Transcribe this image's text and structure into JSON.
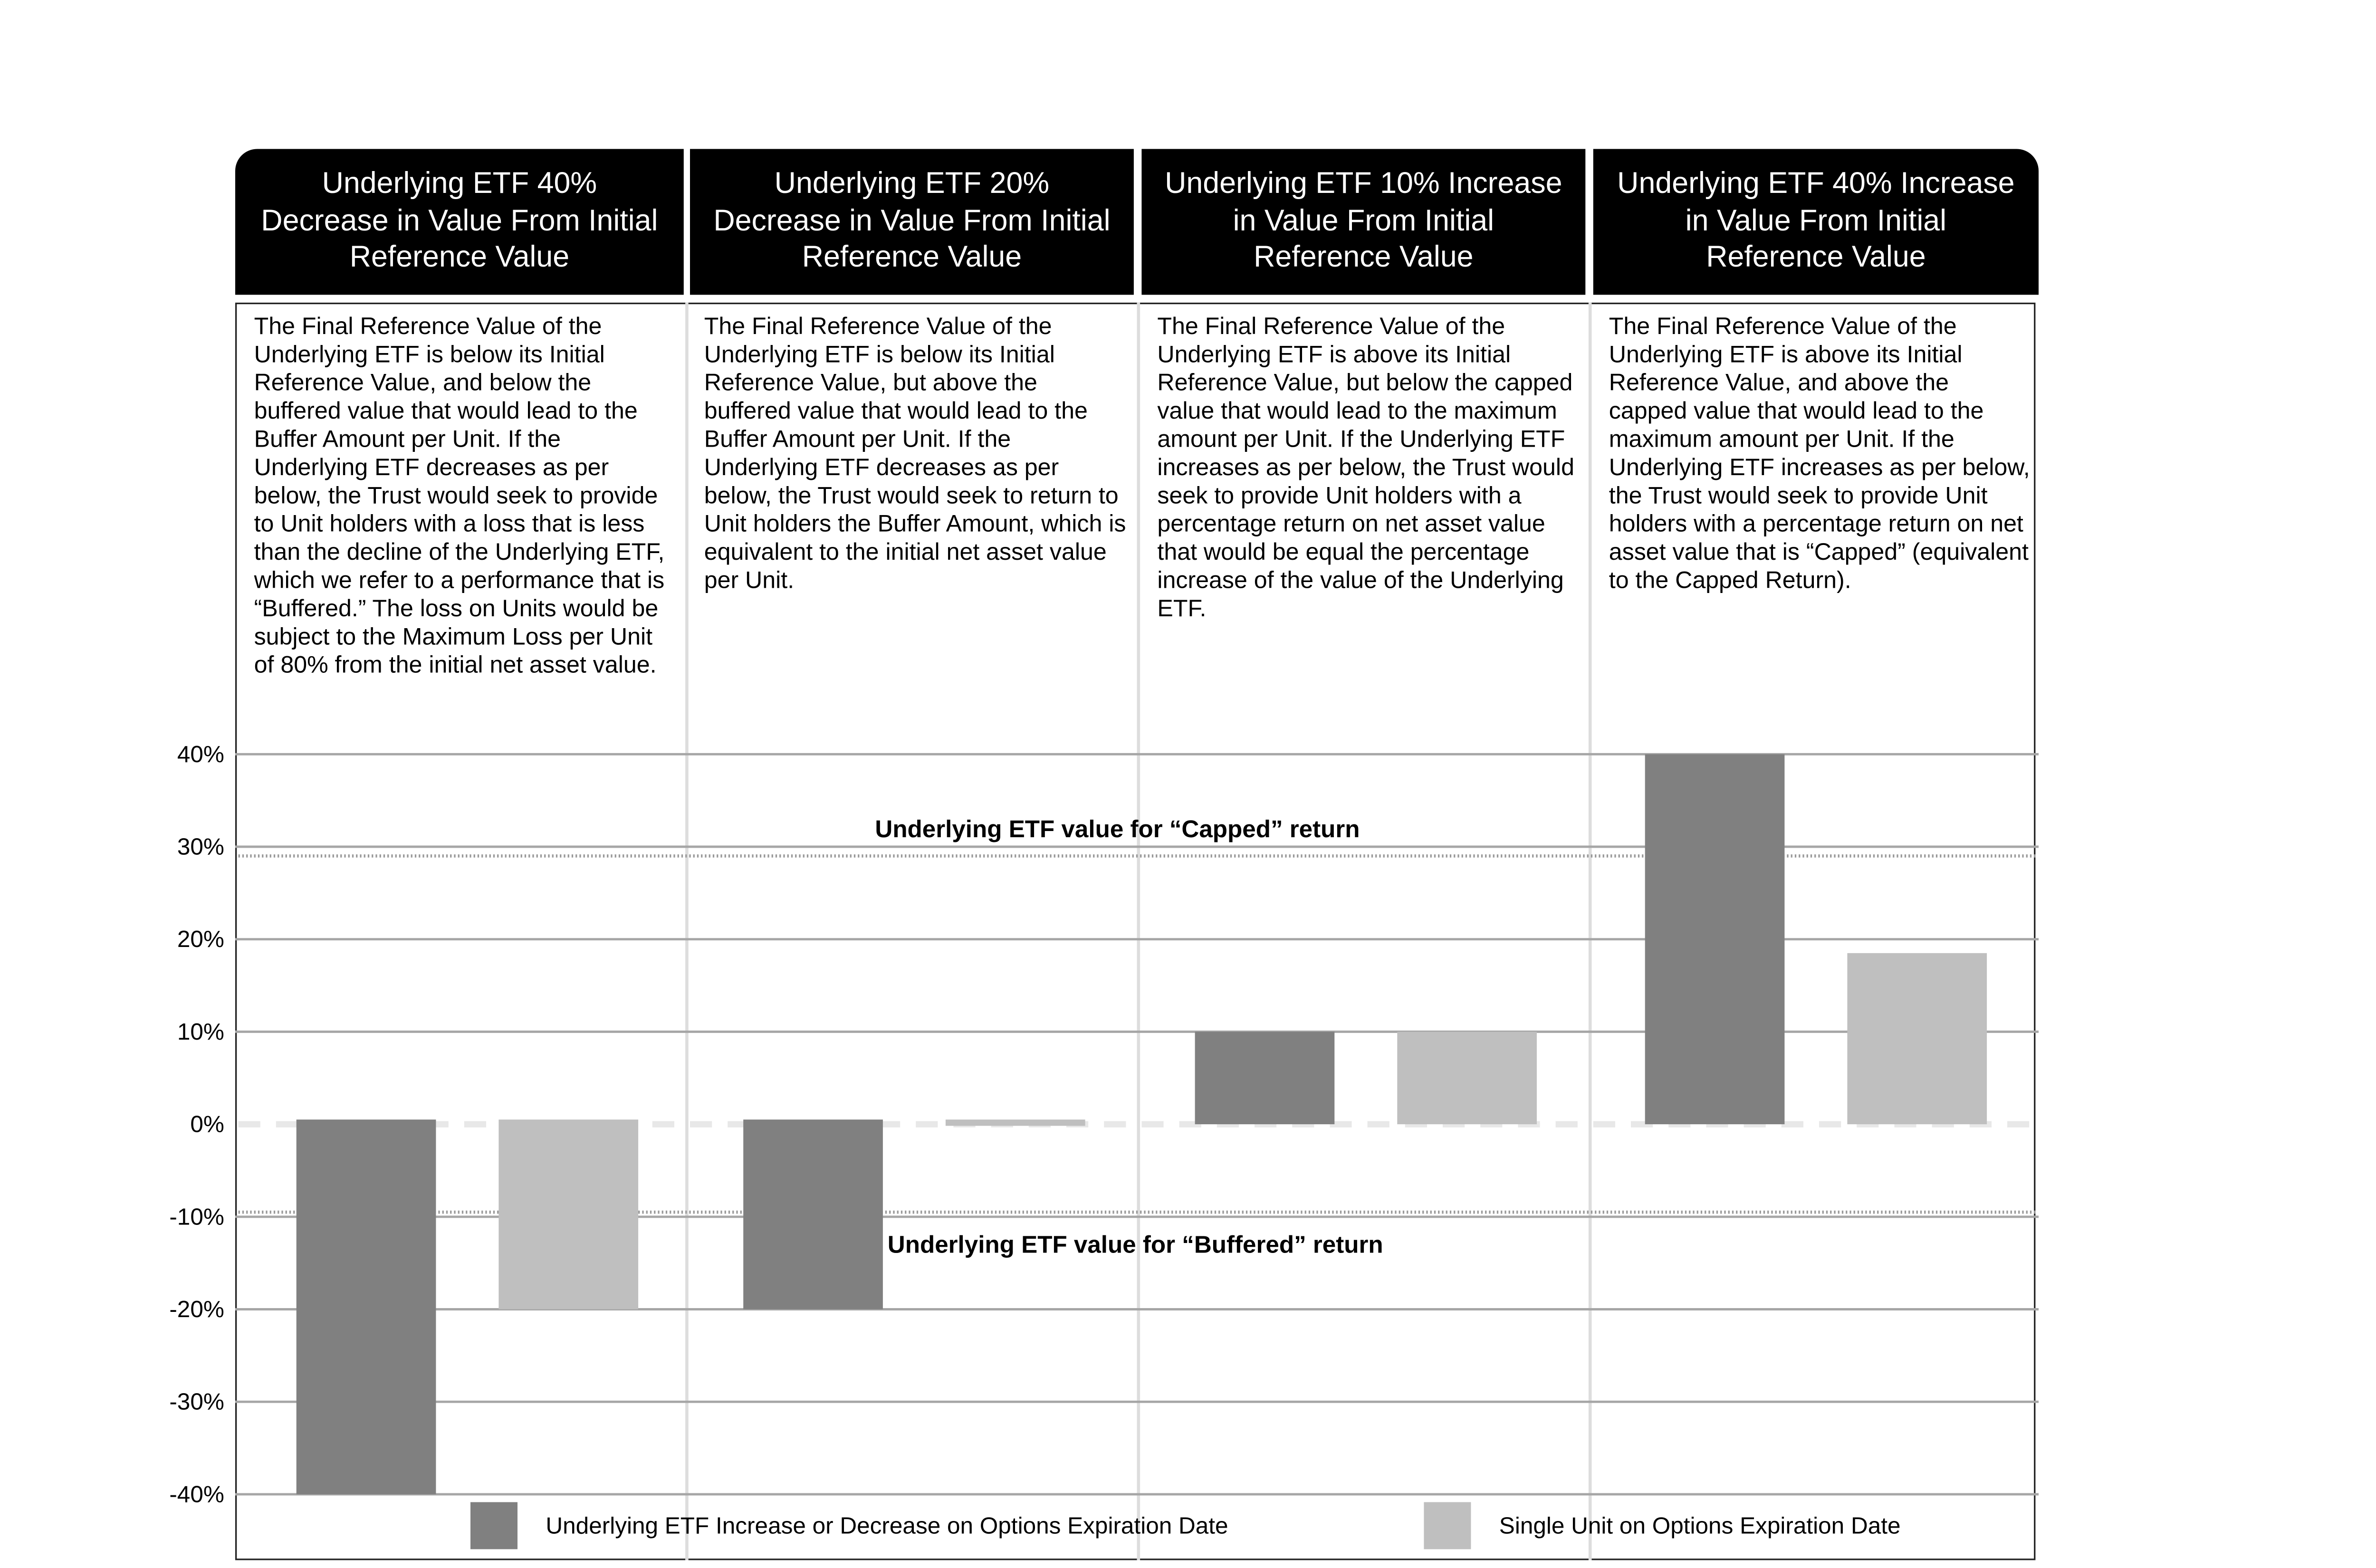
{
  "panels": [
    {
      "header": "Underlying ETF 40% Decrease in Value From Initial Reference Value",
      "text": "The Final Reference Value of the Underlying ETF is below its Initial Reference Value, and below the buffered value that would lead to the Buffer Amount per Unit. If the Underlying ETF decreases as per below, the Trust would seek to provide to Unit holders with a loss that is less than the decline of the Underlying ETF, which we refer to a performance that is “Buffered.” The loss on Units would be subject to the Maximum Loss per Unit of 80% from the initial net asset value."
    },
    {
      "header": "Underlying ETF 20% Decrease in Value From Initial Reference Value",
      "text": "The Final Reference Value of the Underlying ETF is below its Initial Reference Value, but above the buffered value that would lead to the Buffer Amount per Unit. If the Underlying ETF decreases as per below, the Trust would seek to return to Unit holders the Buffer Amount, which is equivalent to the initial net asset value per Unit."
    },
    {
      "header": "Underlying ETF 10% Increase in Value From Initial Reference Value",
      "text": "The Final Reference Value of the Underlying ETF is above its Initial Reference Value, but below the capped value that would lead to the maximum amount per Unit. If the Underlying ETF increases as per below, the Trust would seek to provide Unit holders with a percentage return on net asset value that would be equal the percentage increase of the value of the Underlying ETF."
    },
    {
      "header": "Underlying ETF 40% Increase in Value From Initial Reference Value",
      "text": "The Final Reference Value of the Underlying ETF is above its Initial Reference Value, and above the capped value that would lead to the maximum amount per Unit. If the Underlying ETF increases as per below, the Trust would seek to provide Unit holders with a percentage return on net asset value that is “Capped” (equivalent to the Capped Return)."
    }
  ],
  "chart_data": {
    "type": "bar",
    "categories": [
      "Underlying ETF 40% Decrease",
      "Underlying ETF 20% Decrease",
      "Underlying ETF 10% Increase",
      "Underlying ETF 40% Increase"
    ],
    "series": [
      {
        "name": "Underlying ETF Increase or Decrease on Options Expiration Date",
        "color": "#808080",
        "values": [
          -40,
          -20,
          10,
          40
        ]
      },
      {
        "name": "Single Unit on Options Expiration Date",
        "color": "#bfbfbf",
        "values": [
          -20,
          0,
          10,
          18.5
        ]
      }
    ],
    "ylim": [
      -40,
      40
    ],
    "yticks": [
      40,
      30,
      20,
      10,
      0,
      -10,
      -20,
      -30,
      -40
    ],
    "ytick_labels": [
      "40%",
      "30%",
      "20%",
      "10%",
      "0%",
      "-10%",
      "-20%",
      "-30%",
      "-40%"
    ],
    "reference_lines": [
      {
        "label": "Underlying ETF value for “Capped” return",
        "value": 29
      },
      {
        "label": "Underlying ETF value for “Buffered” return",
        "value": -9.5
      }
    ],
    "legend_position": "bottom"
  }
}
